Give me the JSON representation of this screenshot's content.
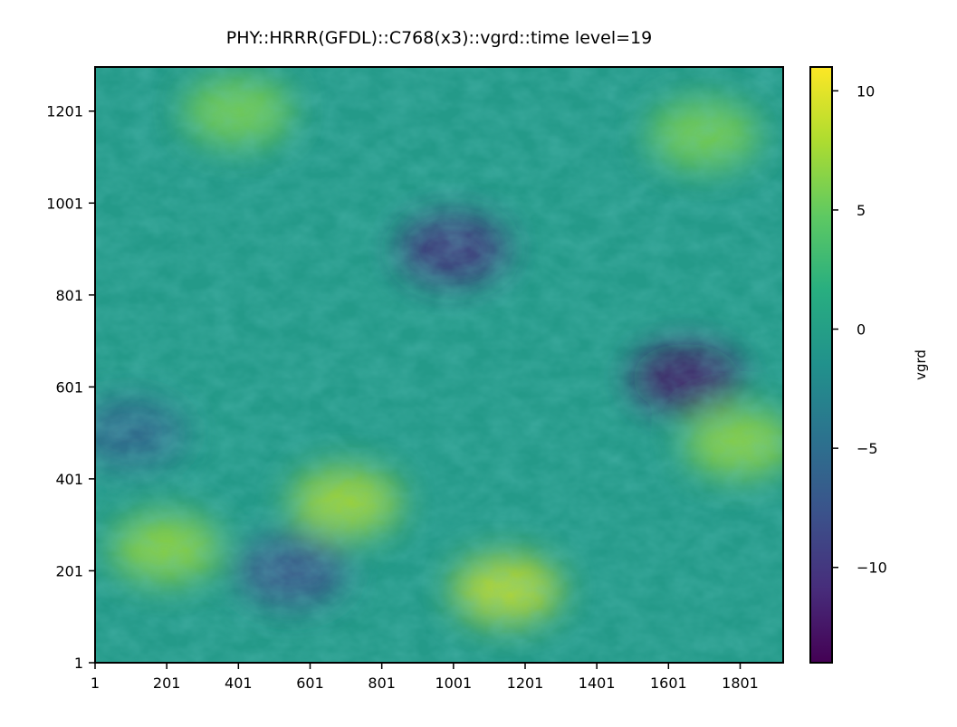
{
  "chart_data": {
    "type": "heatmap",
    "title": "PHY::HRRR(GFDL)::C768(x3)::vgrd::time level=19",
    "xlabel": "",
    "ylabel": "",
    "x_ticks": [
      "1",
      "201",
      "401",
      "601",
      "801",
      "1001",
      "1201",
      "1401",
      "1601",
      "1801"
    ],
    "y_ticks": [
      "1",
      "201",
      "401",
      "601",
      "801",
      "1001",
      "1201"
    ],
    "x_range": [
      1,
      1921
    ],
    "y_range": [
      1,
      1297
    ],
    "colormap": "viridis",
    "colorbar": {
      "label": "vgrd",
      "ticks": [
        {
          "value": 10,
          "label": "10"
        },
        {
          "value": 5,
          "label": "5"
        },
        {
          "value": 0,
          "label": "0"
        },
        {
          "value": -5,
          "label": "−5"
        },
        {
          "value": -10,
          "label": "−10"
        }
      ],
      "vmin": -14,
      "vmax": 11
    },
    "field_features": [
      {
        "x": 1650,
        "y": 620,
        "value": -13
      },
      {
        "x": 1000,
        "y": 900,
        "value": -11
      },
      {
        "x": 700,
        "y": 350,
        "value": 8
      },
      {
        "x": 1150,
        "y": 160,
        "value": 9
      },
      {
        "x": 200,
        "y": 250,
        "value": 7
      },
      {
        "x": 400,
        "y": 1200,
        "value": 6
      },
      {
        "x": 1800,
        "y": 480,
        "value": 7
      },
      {
        "x": 1700,
        "y": 1150,
        "value": 6
      },
      {
        "x": 550,
        "y": 200,
        "value": -8
      },
      {
        "x": 100,
        "y": 500,
        "value": -6
      }
    ]
  }
}
